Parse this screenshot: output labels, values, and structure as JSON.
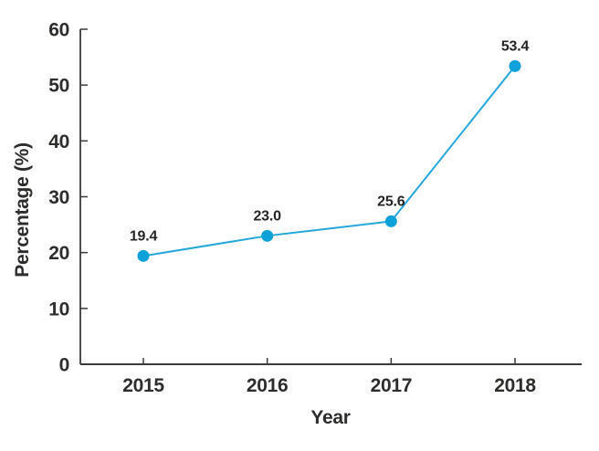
{
  "chart_data": {
    "type": "line",
    "x": [
      "2015",
      "2016",
      "2017",
      "2018"
    ],
    "values": [
      19.4,
      23.0,
      25.6,
      53.4
    ],
    "point_labels": [
      "19.4",
      "23.0",
      "25.6",
      "53.4"
    ],
    "title": "",
    "xlabel": "Year",
    "ylabel": "Percentage (%)",
    "ylim": [
      0,
      60
    ],
    "yticks": [
      0,
      10,
      20,
      30,
      40,
      50,
      60
    ],
    "grid": false,
    "legend": "none",
    "colors": {
      "line": "#25a7dc",
      "marker": "#0ea0d8",
      "axis": "#3a3a3a",
      "tick_text": "#2e2d2c",
      "label_text": "#262425",
      "background": "#ffffff"
    }
  }
}
